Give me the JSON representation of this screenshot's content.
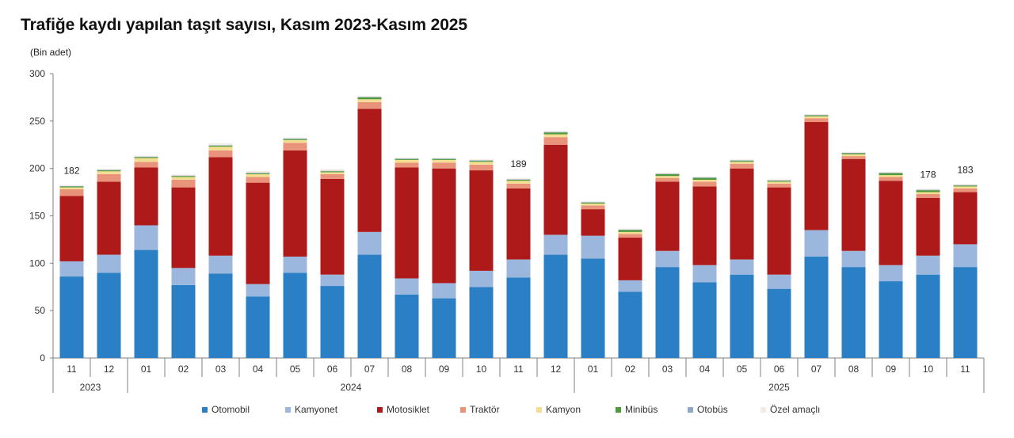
{
  "title": "Trafiğe kaydı yapılan taşıt sayısı, Kasım 2023-Kasım 2025",
  "chart_data": {
    "type": "bar",
    "stacked": true,
    "title": "Trafiğe kaydı yapılan taşıt sayısı, Kasım 2023-Kasım 2025",
    "ylabel": "(Bin adet)",
    "ylim": [
      0,
      300
    ],
    "yticks": [
      0,
      50,
      100,
      150,
      200,
      250,
      300
    ],
    "grid": false,
    "legend_position": "bottom",
    "categories": [
      "11",
      "12",
      "01",
      "02",
      "03",
      "04",
      "05",
      "06",
      "07",
      "08",
      "09",
      "10",
      "11",
      "12",
      "01",
      "02",
      "03",
      "04",
      "05",
      "06",
      "07",
      "08",
      "09",
      "10",
      "11"
    ],
    "year_groups": [
      {
        "label": "2023",
        "start": 0,
        "end": 1
      },
      {
        "label": "2024",
        "start": 2,
        "end": 13
      },
      {
        "label": "2025",
        "start": 14,
        "end": 24
      }
    ],
    "series": [
      {
        "name": "Otomobil",
        "color": "#2b7fc4",
        "values": [
          86,
          90,
          114,
          77,
          89,
          65,
          90,
          76,
          109,
          67,
          63,
          75,
          85,
          109,
          105,
          70,
          96,
          80,
          88,
          73,
          107,
          96,
          81,
          88,
          96
        ]
      },
      {
        "name": "Kamyonet",
        "color": "#9cb7dd",
        "values": [
          16,
          19,
          26,
          18,
          19,
          13,
          17,
          12,
          24,
          17,
          16,
          17,
          19,
          21,
          24,
          12,
          17,
          18,
          16,
          15,
          28,
          17,
          17,
          20,
          24
        ]
      },
      {
        "name": "Motosiklet",
        "color": "#ae1a1a",
        "values": [
          69,
          77,
          61,
          85,
          104,
          107,
          112,
          101,
          130,
          117,
          121,
          106,
          75,
          95,
          28,
          45,
          73,
          83,
          96,
          92,
          114,
          97,
          89,
          61,
          55
        ]
      },
      {
        "name": "Traktör",
        "color": "#e8937a",
        "values": [
          7,
          8,
          6,
          8,
          7,
          6,
          8,
          5,
          7,
          5,
          6,
          6,
          5,
          8,
          4,
          4,
          4,
          5,
          5,
          4,
          4,
          3,
          4,
          4,
          4
        ]
      },
      {
        "name": "Kamyon",
        "color": "#f3dd93",
        "values": [
          2,
          3,
          4,
          3,
          4,
          3,
          3,
          2,
          3,
          3,
          3,
          3,
          3,
          3,
          2,
          2,
          2,
          2,
          2,
          2,
          2,
          2,
          2,
          2,
          2
        ]
      },
      {
        "name": "Minibüs",
        "color": "#4f9a3b",
        "values": [
          1,
          1,
          1,
          1,
          1,
          1,
          1,
          1,
          2,
          1,
          1,
          1,
          1,
          2,
          1,
          2,
          2,
          2,
          1,
          1,
          1,
          1,
          2,
          2,
          1
        ]
      },
      {
        "name": "Otobüs",
        "color": "#8fa8c6",
        "values": [
          0.5,
          0.5,
          0.5,
          0.5,
          0.5,
          0.5,
          0.5,
          0.5,
          0.5,
          0.5,
          0.5,
          0.5,
          0.5,
          0.5,
          0.5,
          0.5,
          0.5,
          0.5,
          0.5,
          0.5,
          0.5,
          0.5,
          0.5,
          0.5,
          0.5
        ]
      },
      {
        "name": "Özel amaçlı",
        "color": "#f3ebe4",
        "values": [
          1,
          1,
          1,
          1,
          2,
          2,
          1,
          2,
          1,
          1,
          1,
          1,
          1,
          1,
          1,
          1,
          1,
          1,
          1,
          1,
          1,
          1,
          1,
          1,
          1
        ]
      }
    ],
    "data_labels": [
      {
        "index": 0,
        "text": "182"
      },
      {
        "index": 12,
        "text": "189"
      },
      {
        "index": 23,
        "text": "178"
      },
      {
        "index": 24,
        "text": "183"
      }
    ]
  }
}
